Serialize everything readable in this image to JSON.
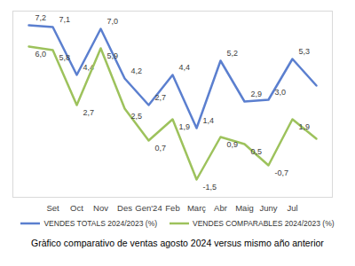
{
  "chart_data": {
    "type": "line",
    "title": "Gràfico comparativo de ventas agosto 2024 versus mismo año anterior",
    "categories": [
      null,
      "Set",
      "Oct",
      "Nov",
      "Des",
      "Gen'24",
      "Feb",
      "Març",
      "Abr",
      "Maig",
      "Juny",
      "Jul",
      null
    ],
    "series": [
      {
        "name": "VENDES TOTALS 2024/2023 (%)",
        "color": "#5b7fcf",
        "values": [
          7.2,
          7.1,
          4.4,
          7.0,
          4.2,
          2.7,
          4.4,
          1.4,
          5.2,
          2.9,
          3.0,
          5.3,
          3.8
        ],
        "value_labels": [
          "7,2",
          "7,1",
          "4,4",
          "7,0",
          "4,2",
          "2,7",
          "4,4",
          "1,4",
          "5,2",
          "2,9",
          "3,0",
          "5,3",
          null
        ]
      },
      {
        "name": "VENDES COMPARABLES 2024/2023 (%)",
        "color": "#9dc25c",
        "values": [
          6.0,
          5.8,
          2.7,
          5.9,
          2.5,
          0.7,
          1.9,
          -1.5,
          0.9,
          0.5,
          -0.7,
          1.9,
          0.8
        ],
        "value_labels": [
          "6,0",
          "5,8",
          "2,7",
          "5,9",
          "2,5",
          "0,7",
          "1,9",
          "-1,5",
          "0,9",
          "0,5",
          "-0,7",
          "1,9",
          null
        ]
      }
    ],
    "ylim": [
      -2.5,
      8
    ],
    "yticks": [],
    "grid": false,
    "tick_labels": "x",
    "data_labels": true,
    "legend": "bottom"
  }
}
